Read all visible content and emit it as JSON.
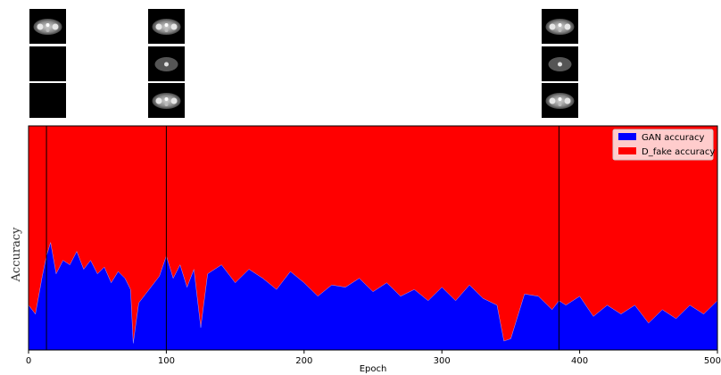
{
  "chart_data": {
    "type": "area",
    "title": "",
    "xlabel": "Epoch",
    "ylabel": "Accuracy",
    "xlim": [
      0,
      500
    ],
    "ylim": [
      0,
      1
    ],
    "xticks": [
      0,
      100,
      200,
      300,
      400,
      500
    ],
    "tick_labels": [
      "0",
      "100",
      "200",
      "300",
      "400",
      "500"
    ],
    "legend_position": "top-right",
    "stacked": true,
    "markers": [
      13,
      100,
      385
    ],
    "series": [
      {
        "name": "GAN accuracy",
        "color": "#0000ff",
        "x": [
          0,
          5,
          10,
          13,
          16,
          20,
          25,
          30,
          35,
          40,
          45,
          50,
          55,
          60,
          65,
          70,
          74,
          76,
          80,
          85,
          90,
          95,
          100,
          105,
          110,
          115,
          120,
          125,
          130,
          140,
          150,
          160,
          170,
          180,
          190,
          200,
          210,
          220,
          230,
          240,
          250,
          260,
          270,
          280,
          290,
          300,
          310,
          320,
          330,
          340,
          345,
          350,
          360,
          370,
          380,
          385,
          390,
          400,
          410,
          420,
          430,
          440,
          450,
          460,
          470,
          480,
          490,
          500
        ],
        "values": [
          0.2,
          0.16,
          0.33,
          0.42,
          0.48,
          0.34,
          0.4,
          0.38,
          0.44,
          0.36,
          0.4,
          0.34,
          0.37,
          0.3,
          0.35,
          0.32,
          0.27,
          0.03,
          0.21,
          0.25,
          0.29,
          0.33,
          0.42,
          0.32,
          0.38,
          0.28,
          0.36,
          0.1,
          0.34,
          0.38,
          0.3,
          0.36,
          0.32,
          0.27,
          0.35,
          0.3,
          0.24,
          0.29,
          0.28,
          0.32,
          0.26,
          0.3,
          0.24,
          0.27,
          0.22,
          0.28,
          0.22,
          0.29,
          0.23,
          0.2,
          0.04,
          0.05,
          0.25,
          0.24,
          0.18,
          0.22,
          0.2,
          0.24,
          0.15,
          0.2,
          0.16,
          0.2,
          0.12,
          0.18,
          0.14,
          0.2,
          0.16,
          0.22
        ]
      },
      {
        "name": "D_fake accuracy",
        "color": "#ff0000",
        "value": 1.0
      }
    ]
  },
  "thumbnail_columns": [
    {
      "epoch": 13,
      "rows": [
        "scan",
        "blank",
        "blank"
      ]
    },
    {
      "epoch": 100,
      "rows": [
        "scan",
        "scan-dim",
        "scan"
      ]
    },
    {
      "epoch": 385,
      "rows": [
        "scan",
        "scan-dim",
        "scan"
      ]
    }
  ]
}
